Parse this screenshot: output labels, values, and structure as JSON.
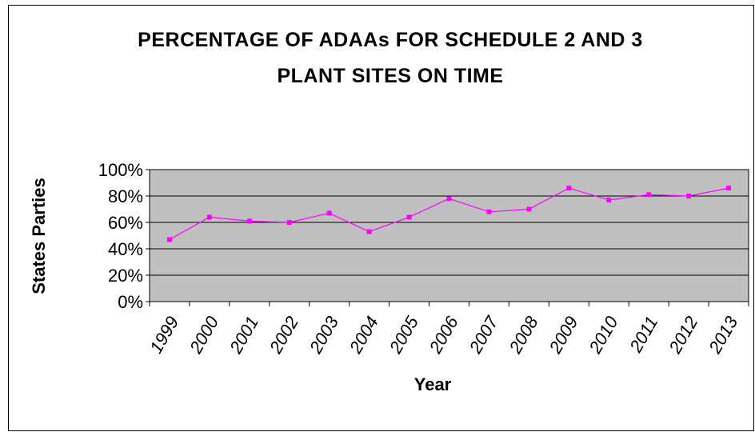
{
  "chart_data": {
    "type": "line",
    "title": "PERCENTAGE OF ADAAs FOR SCHEDULE 2 AND 3 PLANT SITES ON TIME",
    "x_label": "Year",
    "y_label": "States Parties",
    "categories": [
      "1999",
      "2000",
      "2001",
      "2002",
      "2003",
      "2004",
      "2005",
      "2006",
      "2007",
      "2008",
      "2009",
      "2010",
      "2011",
      "2012",
      "2013"
    ],
    "series": [
      {
        "name": "States Parties",
        "color": "#ff00ff",
        "values": [
          47,
          64,
          61,
          60,
          67,
          53,
          64,
          78,
          68,
          70,
          86,
          77,
          81,
          80,
          86
        ]
      }
    ],
    "ylim": [
      0,
      100
    ],
    "yticks": [
      {
        "value": 0,
        "label": "0%"
      },
      {
        "value": 20,
        "label": "20%"
      },
      {
        "value": 40,
        "label": "40%"
      },
      {
        "value": 60,
        "label": "60%"
      },
      {
        "value": 80,
        "label": "80%"
      },
      {
        "value": 100,
        "label": "100%"
      }
    ],
    "grid": true
  }
}
